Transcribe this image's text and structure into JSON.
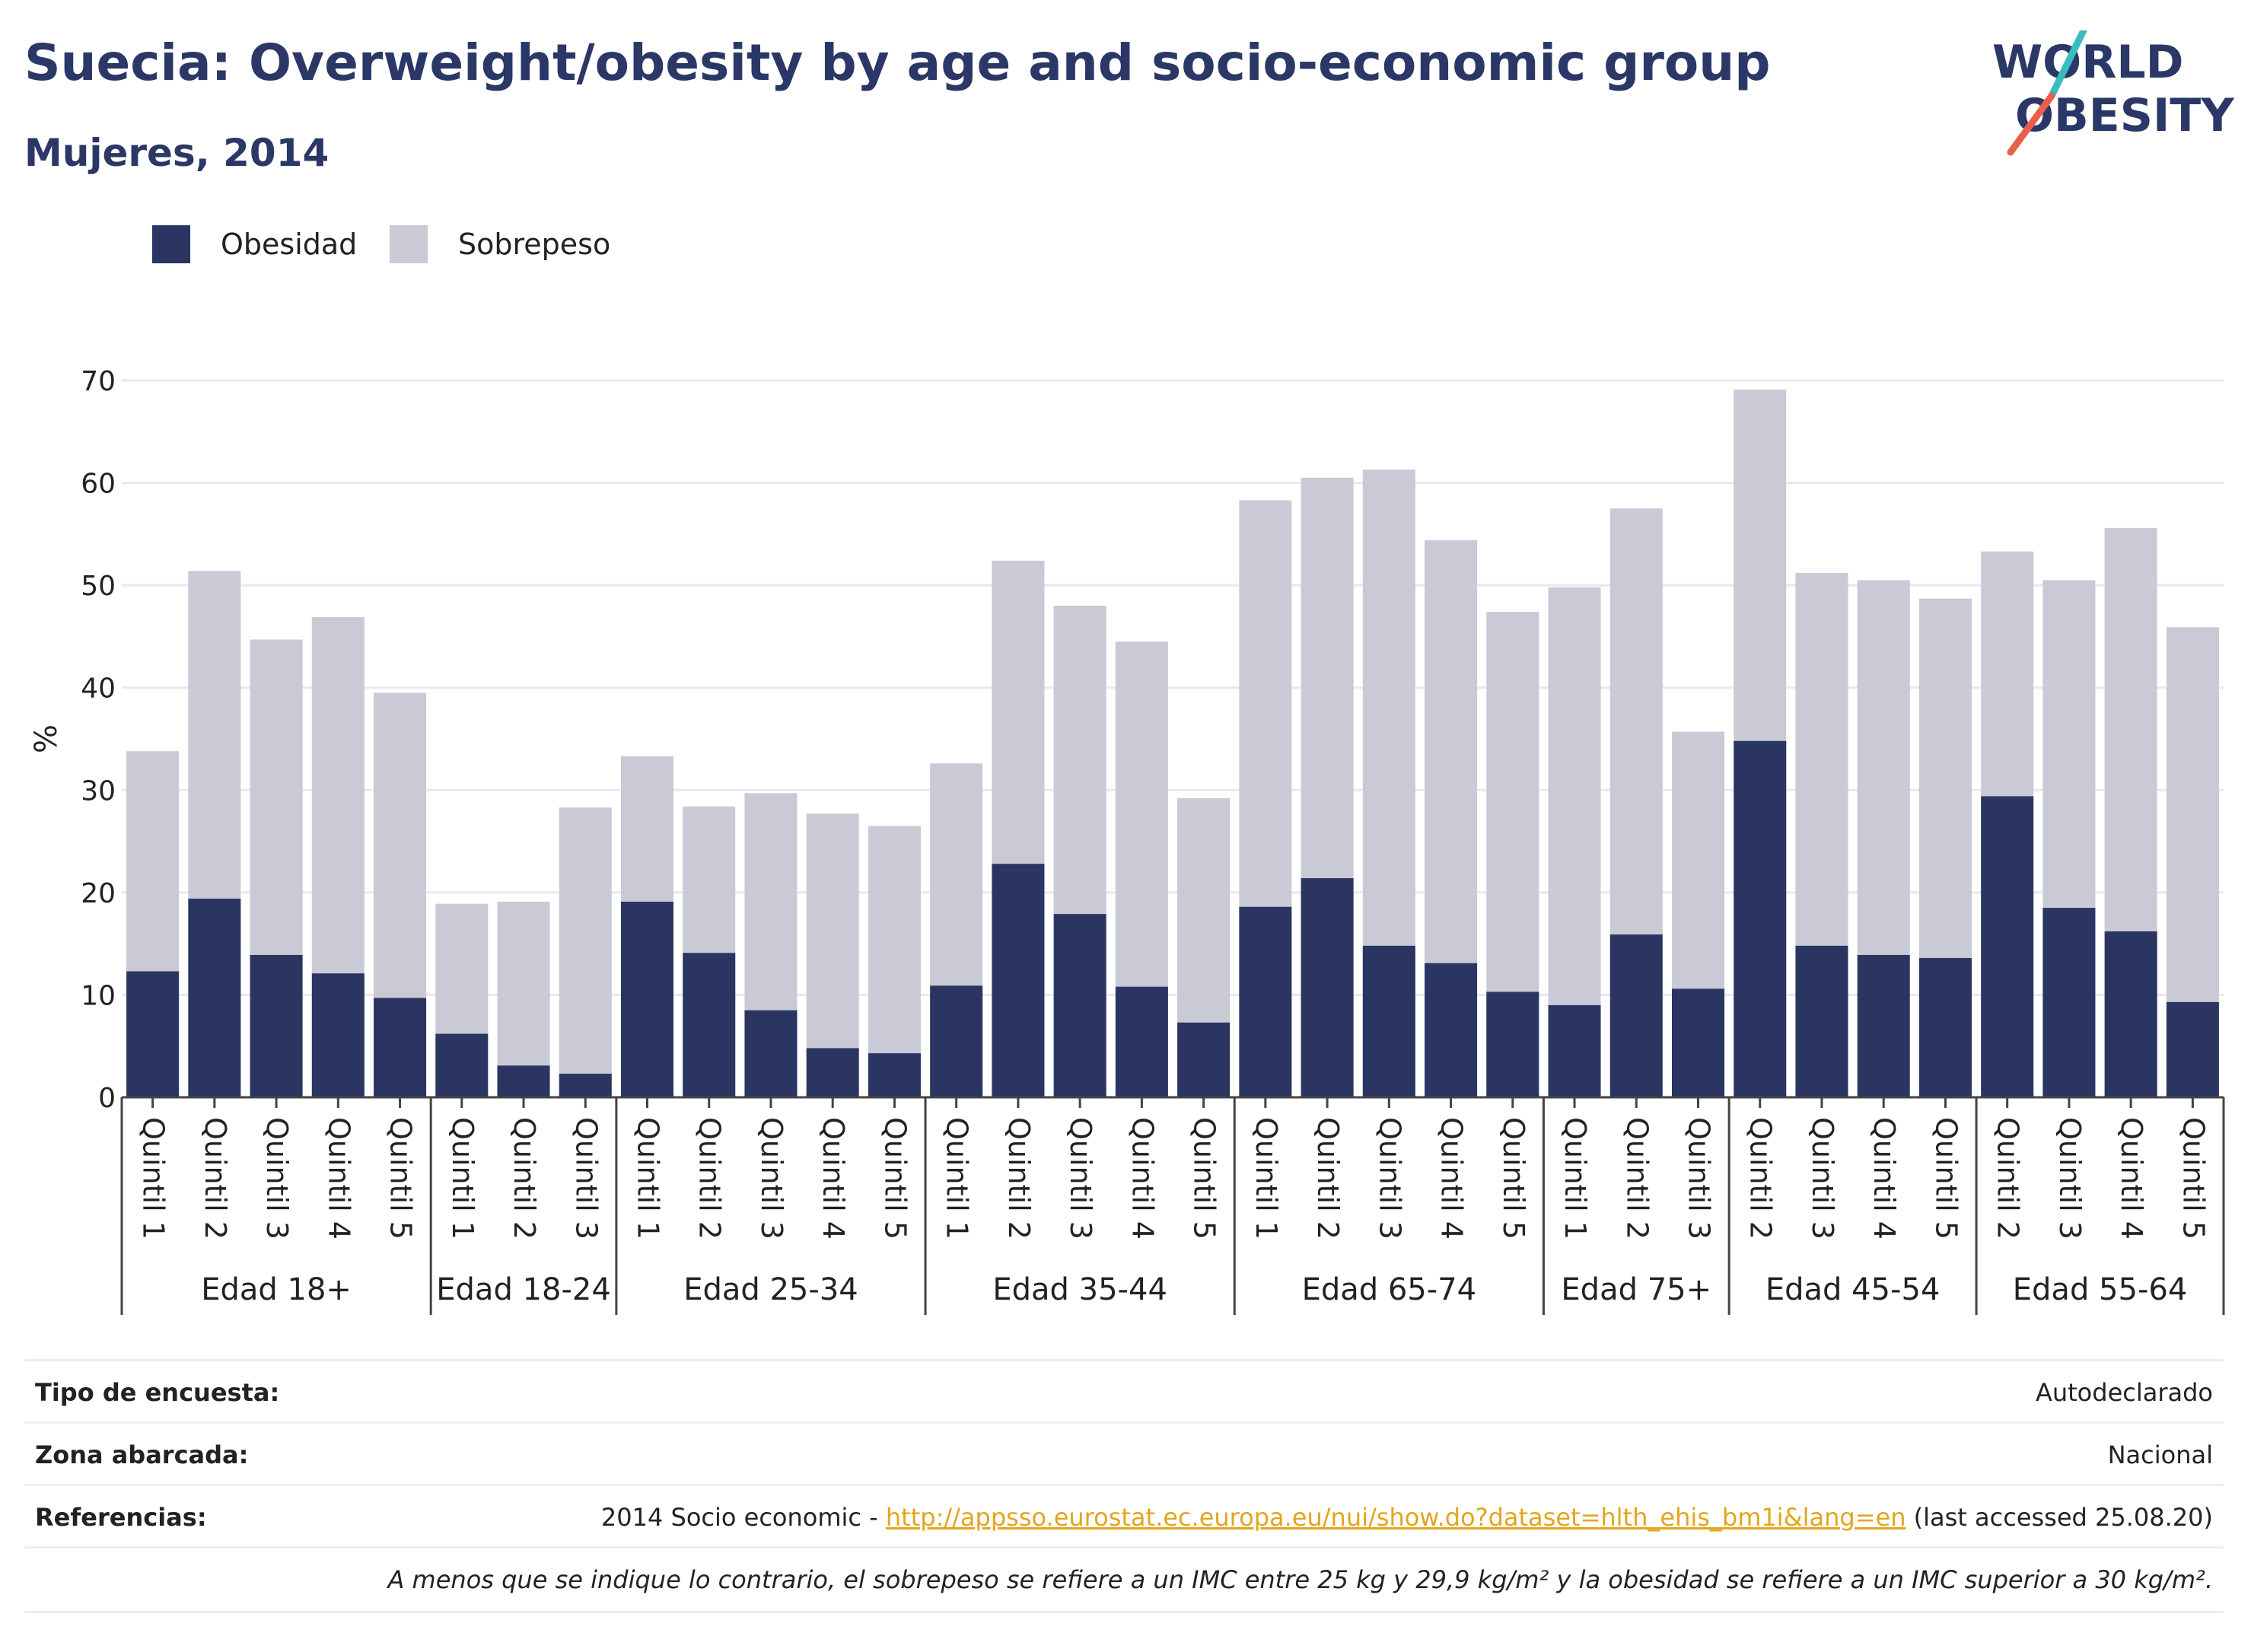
{
  "title": "Suecia: Overweight/obesity by age and socio-economic group",
  "subtitle": "Mujeres, 2014",
  "logo": {
    "line1": "WORLD",
    "line2": "OBESITY"
  },
  "colors": {
    "obesity": "#2b3562",
    "overweight": "#c9cad6",
    "grid": "#e8e8ee",
    "logo_accent_red": "#e8604c",
    "logo_accent_teal": "#38bcc0"
  },
  "chart_data": {
    "type": "bar",
    "stacked": true,
    "ylabel": "%",
    "ylim": [
      0,
      70
    ],
    "yticks": [
      0,
      10,
      20,
      30,
      40,
      50,
      60,
      70
    ],
    "grid": true,
    "legend_position": "top-left",
    "series": [
      {
        "name": "Obesidad"
      },
      {
        "name": "Sobrepeso"
      }
    ],
    "groups": [
      {
        "label": "Edad 18+",
        "bars": [
          {
            "category": "Quintil 1",
            "obesidad": 12.3,
            "total": 33.8
          },
          {
            "category": "Quintil 2",
            "obesidad": 19.4,
            "total": 51.4
          },
          {
            "category": "Quintil 3",
            "obesidad": 13.9,
            "total": 44.7
          },
          {
            "category": "Quintil 4",
            "obesidad": 12.1,
            "total": 46.9
          },
          {
            "category": "Quintil 5",
            "obesidad": 9.7,
            "total": 39.5
          }
        ]
      },
      {
        "label": "Edad 18-24",
        "bars": [
          {
            "category": "Quintil 1",
            "obesidad": 6.2,
            "total": 18.9
          },
          {
            "category": "Quintil 2",
            "obesidad": 3.1,
            "total": 19.1
          },
          {
            "category": "Quintil 3",
            "obesidad": 2.3,
            "total": 28.3
          }
        ]
      },
      {
        "label": "Edad 25-34",
        "bars": [
          {
            "category": "Quintil 1",
            "obesidad": 19.1,
            "total": 33.3
          },
          {
            "category": "Quintil 2",
            "obesidad": 14.1,
            "total": 28.4
          },
          {
            "category": "Quintil 3",
            "obesidad": 8.5,
            "total": 29.7
          },
          {
            "category": "Quintil 4",
            "obesidad": 4.8,
            "total": 27.7
          },
          {
            "category": "Quintil 5",
            "obesidad": 4.3,
            "total": 26.5
          }
        ]
      },
      {
        "label": "Edad 35-44",
        "bars": [
          {
            "category": "Quintil 1",
            "obesidad": 10.9,
            "total": 32.6
          },
          {
            "category": "Quintil 2",
            "obesidad": 22.8,
            "total": 52.4
          },
          {
            "category": "Quintil 3",
            "obesidad": 17.9,
            "total": 48.0
          },
          {
            "category": "Quintil 4",
            "obesidad": 10.8,
            "total": 44.5
          },
          {
            "category": "Quintil 5",
            "obesidad": 7.3,
            "total": 29.2
          }
        ]
      },
      {
        "label": "Edad 65-74",
        "bars": [
          {
            "category": "Quintil 1",
            "obesidad": 18.6,
            "total": 58.3
          },
          {
            "category": "Quintil 2",
            "obesidad": 21.4,
            "total": 60.5
          },
          {
            "category": "Quintil 3",
            "obesidad": 14.8,
            "total": 61.3
          },
          {
            "category": "Quintil 4",
            "obesidad": 13.1,
            "total": 54.4
          },
          {
            "category": "Quintil 5",
            "obesidad": 10.3,
            "total": 47.4
          }
        ]
      },
      {
        "label": "Edad 75+",
        "bars": [
          {
            "category": "Quintil 1",
            "obesidad": 9.0,
            "total": 49.8
          },
          {
            "category": "Quintil 2",
            "obesidad": 15.9,
            "total": 57.5
          },
          {
            "category": "Quintil 3",
            "obesidad": 10.6,
            "total": 35.7
          }
        ]
      },
      {
        "label": "Edad 45-54",
        "bars": [
          {
            "category": "Quintil 2",
            "obesidad": 34.8,
            "total": 69.1
          },
          {
            "category": "Quintil 3",
            "obesidad": 14.8,
            "total": 51.2
          },
          {
            "category": "Quintil 4",
            "obesidad": 13.9,
            "total": 50.5
          },
          {
            "category": "Quintil 5",
            "obesidad": 13.6,
            "total": 48.7
          }
        ]
      },
      {
        "label": "Edad 55-64",
        "bars": [
          {
            "category": "Quintil 2",
            "obesidad": 29.4,
            "total": 53.3
          },
          {
            "category": "Quintil 3",
            "obesidad": 18.5,
            "total": 50.5
          },
          {
            "category": "Quintil 4",
            "obesidad": 16.2,
            "total": 55.6
          },
          {
            "category": "Quintil 5",
            "obesidad": 9.3,
            "total": 45.9
          }
        ]
      }
    ]
  },
  "info": {
    "survey_label": "Tipo de encuesta:",
    "survey_value": "Autodeclarado",
    "area_label": "Zona abarcada:",
    "area_value": "Nacional",
    "refs_label": "Referencias:",
    "refs_prefix": "2014 Socio economic - ",
    "refs_link": "http://appsso.eurostat.ec.europa.eu/nui/show.do?dataset=hlth_ehis_bm1i&lang=en",
    "refs_suffix": " (last accessed 25.08.20)",
    "note": "A menos que se indique lo contrario, el sobrepeso se refiere a un IMC entre 25 kg y 29,9 kg/m² y la obesidad se refiere a un IMC superior a 30 kg/m²."
  }
}
